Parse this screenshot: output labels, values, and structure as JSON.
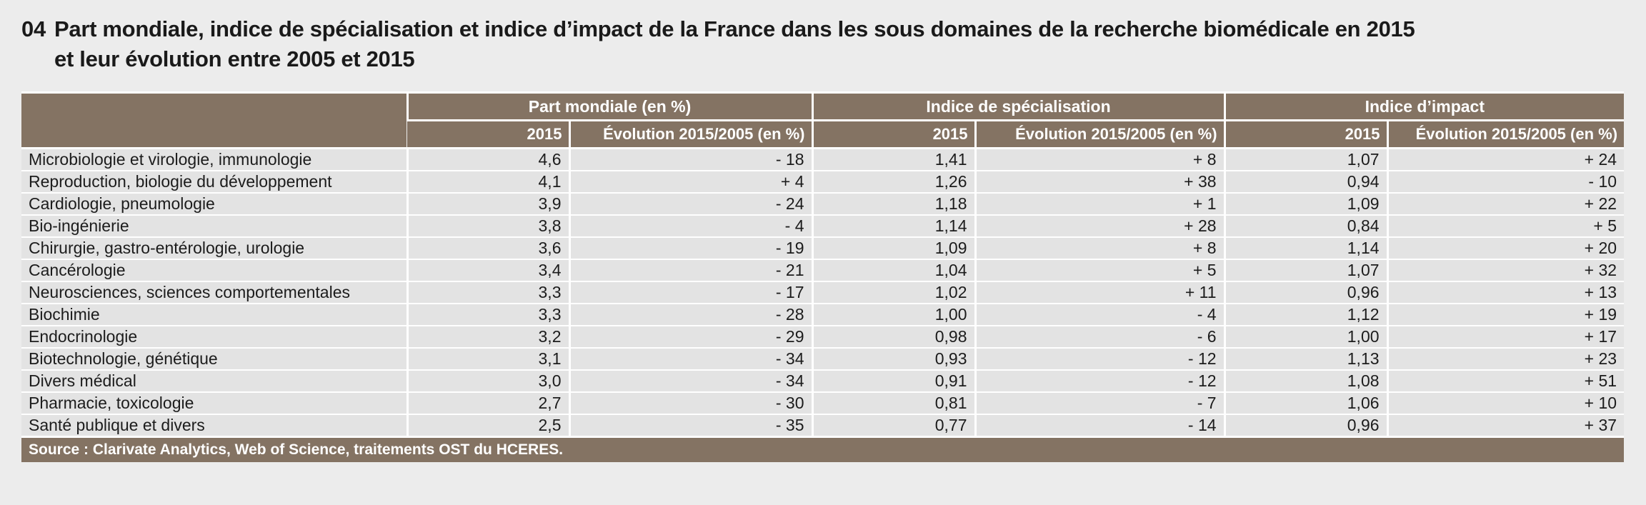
{
  "figure": {
    "number": "04",
    "title_line1": "Part mondiale, indice de spécialisation et indice d’impact de la France dans les sous domaines de la recherche biomédicale en 2015",
    "title_line2": "et leur évolution entre 2005 et 2015"
  },
  "colors": {
    "header_bg": "#847363",
    "row_bg": "#e3e3e3",
    "page_bg": "#ececec",
    "header_text": "#ffffff",
    "body_text": "#1c1c1c"
  },
  "table": {
    "groups": [
      {
        "label": "Part mondiale (en %)"
      },
      {
        "label": "Indice de spécialisation"
      },
      {
        "label": "Indice d’impact"
      }
    ],
    "subcols": {
      "year": "2015",
      "evolution": "Évolution 2015/2005 (en %)"
    },
    "rows": [
      {
        "label": "Microbiologie et virologie, immunologie",
        "pm_2015": "4,6",
        "pm_evo": "- 18",
        "is_2015": "1,41",
        "is_evo": "+ 8",
        "ii_2015": "1,07",
        "ii_evo": "+ 24"
      },
      {
        "label": "Reproduction, biologie du développement",
        "pm_2015": "4,1",
        "pm_evo": "+ 4",
        "is_2015": "1,26",
        "is_evo": "+ 38",
        "ii_2015": "0,94",
        "ii_evo": "- 10"
      },
      {
        "label": "Cardiologie, pneumologie",
        "pm_2015": "3,9",
        "pm_evo": "- 24",
        "is_2015": "1,18",
        "is_evo": "+ 1",
        "ii_2015": "1,09",
        "ii_evo": "+ 22"
      },
      {
        "label": "Bio-ingénierie",
        "pm_2015": "3,8",
        "pm_evo": "- 4",
        "is_2015": "1,14",
        "is_evo": "+ 28",
        "ii_2015": "0,84",
        "ii_evo": "+ 5"
      },
      {
        "label": "Chirurgie, gastro-entérologie, urologie",
        "pm_2015": "3,6",
        "pm_evo": "- 19",
        "is_2015": "1,09",
        "is_evo": "+ 8",
        "ii_2015": "1,14",
        "ii_evo": "+ 20"
      },
      {
        "label": "Cancérologie",
        "pm_2015": "3,4",
        "pm_evo": "- 21",
        "is_2015": "1,04",
        "is_evo": "+ 5",
        "ii_2015": "1,07",
        "ii_evo": "+ 32"
      },
      {
        "label": "Neurosciences, sciences comportementales",
        "pm_2015": "3,3",
        "pm_evo": "- 17",
        "is_2015": "1,02",
        "is_evo": "+ 11",
        "ii_2015": "0,96",
        "ii_evo": "+ 13"
      },
      {
        "label": "Biochimie",
        "pm_2015": "3,3",
        "pm_evo": "- 28",
        "is_2015": "1,00",
        "is_evo": "- 4",
        "ii_2015": "1,12",
        "ii_evo": "+ 19"
      },
      {
        "label": "Endocrinologie",
        "pm_2015": "3,2",
        "pm_evo": "- 29",
        "is_2015": "0,98",
        "is_evo": "- 6",
        "ii_2015": "1,00",
        "ii_evo": "+ 17"
      },
      {
        "label": "Biotechnologie, génétique",
        "pm_2015": "3,1",
        "pm_evo": "- 34",
        "is_2015": "0,93",
        "is_evo": "- 12",
        "ii_2015": "1,13",
        "ii_evo": "+ 23"
      },
      {
        "label": "Divers médical",
        "pm_2015": "3,0",
        "pm_evo": "- 34",
        "is_2015": "0,91",
        "is_evo": "- 12",
        "ii_2015": "1,08",
        "ii_evo": "+ 51"
      },
      {
        "label": "Pharmacie, toxicologie",
        "pm_2015": "2,7",
        "pm_evo": "- 30",
        "is_2015": "0,81",
        "is_evo": "- 7",
        "ii_2015": "1,06",
        "ii_evo": "+ 10"
      },
      {
        "label": "Santé publique et divers",
        "pm_2015": "2,5",
        "pm_evo": "- 35",
        "is_2015": "0,77",
        "is_evo": "- 14",
        "ii_2015": "0,96",
        "ii_evo": "+ 37"
      }
    ],
    "source": "Source : Clarivate Analytics, Web of Science, traitements OST du HCERES."
  }
}
